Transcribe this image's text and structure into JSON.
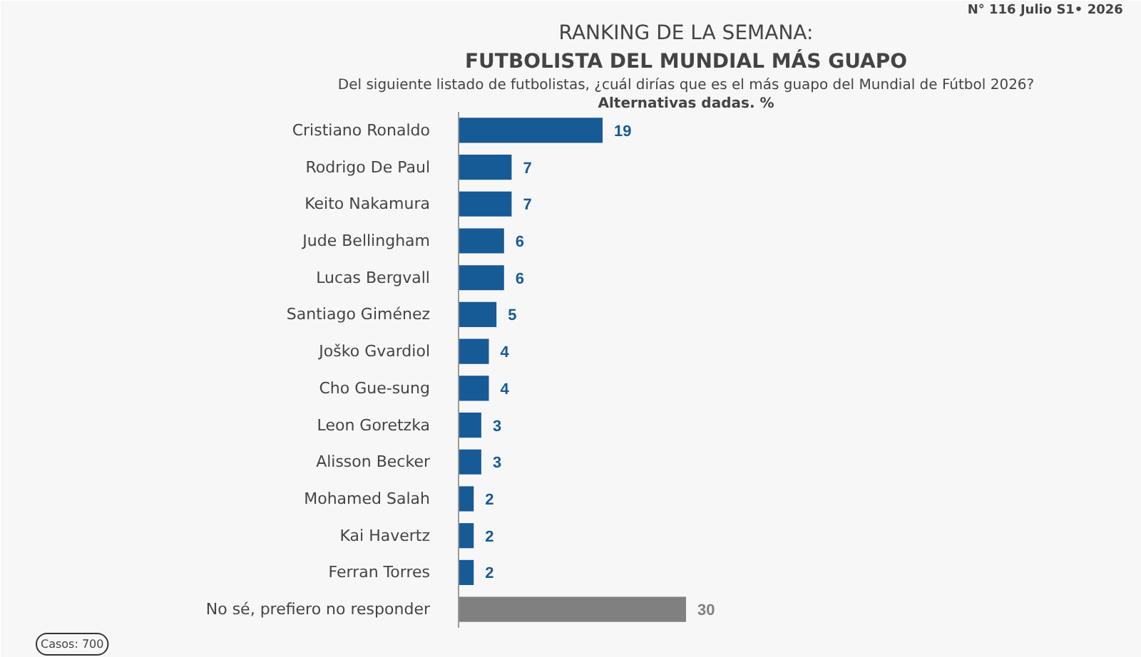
{
  "chart_data": {
    "type": "bar",
    "orientation": "horizontal",
    "title": "RANKING DE LA SEMANA:",
    "subtitle": "FUTBOLISTA DEL MUNDIAL MÁS GUAPO",
    "categories": [
      "Cristiano Ronaldo",
      "Rodrigo De Paul",
      "Keito Nakamura",
      "Jude Bellingham",
      "Lucas Bergvall",
      "Santiago Giménez",
      "Joško Gvardiol",
      "Cho Gue-sung",
      "Leon Goretzka",
      "Alisson Becker",
      "Mohamed Salah",
      "Kai Havertz",
      "Ferran Torres",
      "No sé, prefiero no responder"
    ],
    "values": [
      19,
      7,
      7,
      6,
      6,
      5,
      4,
      4,
      3,
      3,
      2,
      2,
      2,
      30
    ],
    "colors": [
      "#165a96",
      "#165a96",
      "#165a96",
      "#165a96",
      "#165a96",
      "#165a96",
      "#165a96",
      "#165a96",
      "#165a96",
      "#165a96",
      "#165a96",
      "#165a96",
      "#165a96",
      "#808080"
    ],
    "xlim": [
      0,
      60
    ],
    "data_labels": true,
    "grid": false,
    "annotations": [
      "Del siguiente listado de futbolistas, ¿cuál dirías que es el más guapo del Mundial de Fútbol 2026?",
      "Alternativas dadas. %",
      "N°  116 Julio S1• 2026",
      "Casos: 700"
    ]
  }
}
